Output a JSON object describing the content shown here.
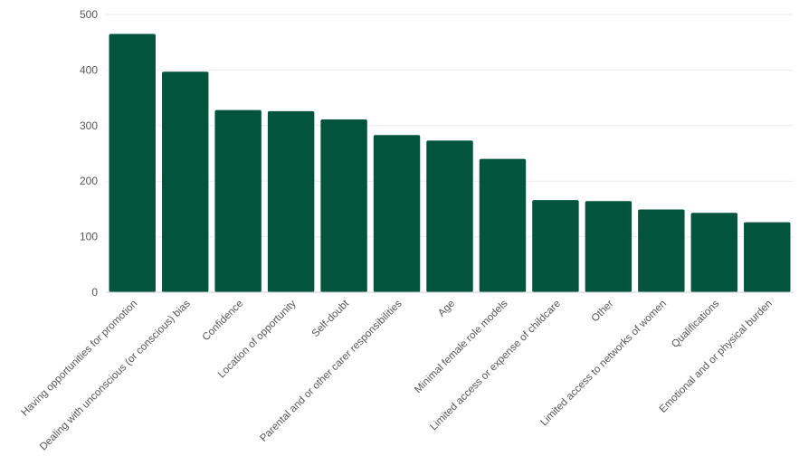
{
  "chart_data": {
    "type": "bar",
    "title": "",
    "xlabel": "",
    "ylabel": "",
    "ylim": [
      0,
      500
    ],
    "yticks": [
      0,
      100,
      200,
      300,
      400,
      500
    ],
    "grid": true,
    "legend": "none",
    "bar_color": "#02553C",
    "categories": [
      "Having opportunities for promotion",
      "Dealing with unconscious (or conscious) bias",
      "Confidence",
      "Location of opportunity",
      "Self-doubt",
      "Parental and or other carer responsibilities",
      "Age",
      "Minimal female role models",
      "Limited access or expense of childcare",
      "Other",
      "Limited access to networks of women",
      "Qualifications",
      "Emotional and or physical burden"
    ],
    "values": [
      465,
      397,
      328,
      326,
      311,
      283,
      273,
      240,
      166,
      164,
      149,
      143,
      126
    ]
  }
}
